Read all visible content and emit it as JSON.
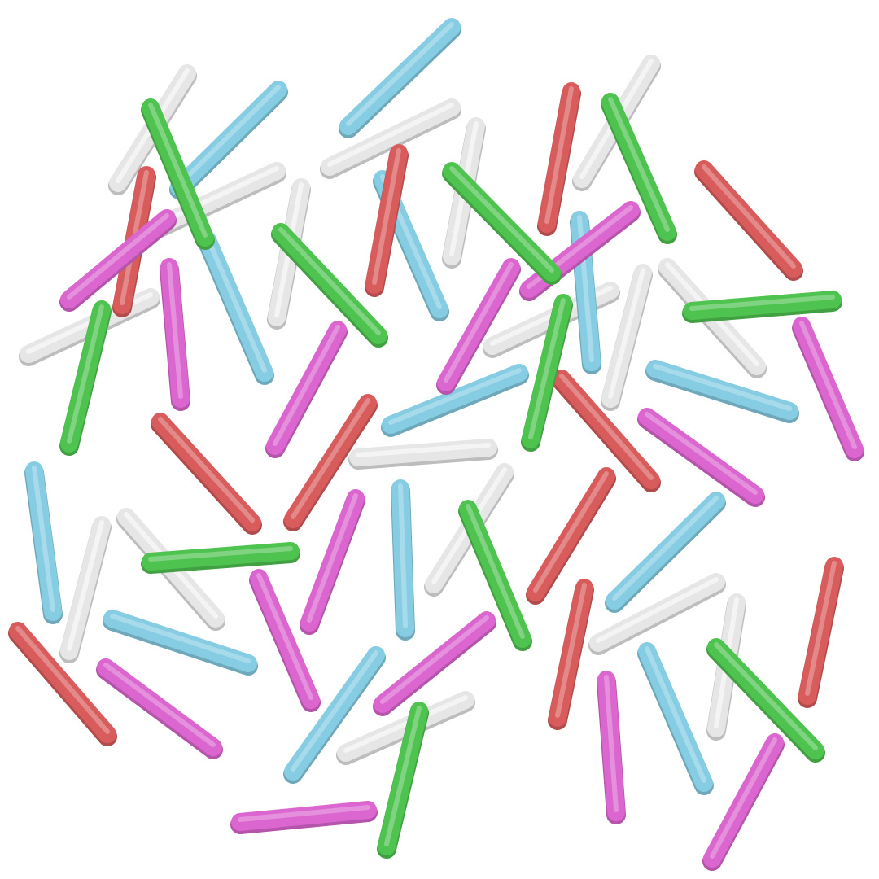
{
  "palette": {
    "background": "#ffffff",
    "white": "#e6e6e6",
    "blue": "#86cde3",
    "green": "#4fc34f",
    "red": "#d95c5c",
    "pink": "#db66cf"
  },
  "sprinkle_colors": [
    "white",
    "white",
    "white",
    "white",
    "white",
    "white",
    "white",
    "white",
    "white",
    "white",
    "white",
    "white",
    "white",
    "white",
    "white",
    "blue",
    "blue",
    "blue",
    "blue",
    "blue",
    "blue",
    "blue",
    "blue",
    "blue",
    "blue",
    "blue",
    "blue",
    "blue",
    "blue",
    "blue",
    "red",
    "red",
    "red",
    "red",
    "red",
    "red",
    "red",
    "red",
    "red",
    "red",
    "red",
    "red",
    "pink",
    "pink",
    "pink",
    "pink",
    "pink",
    "pink",
    "pink",
    "pink",
    "pink",
    "pink",
    "pink",
    "pink",
    "pink",
    "pink",
    "green",
    "green",
    "green",
    "green",
    "green",
    "green",
    "green",
    "green",
    "green",
    "green",
    "green"
  ]
}
